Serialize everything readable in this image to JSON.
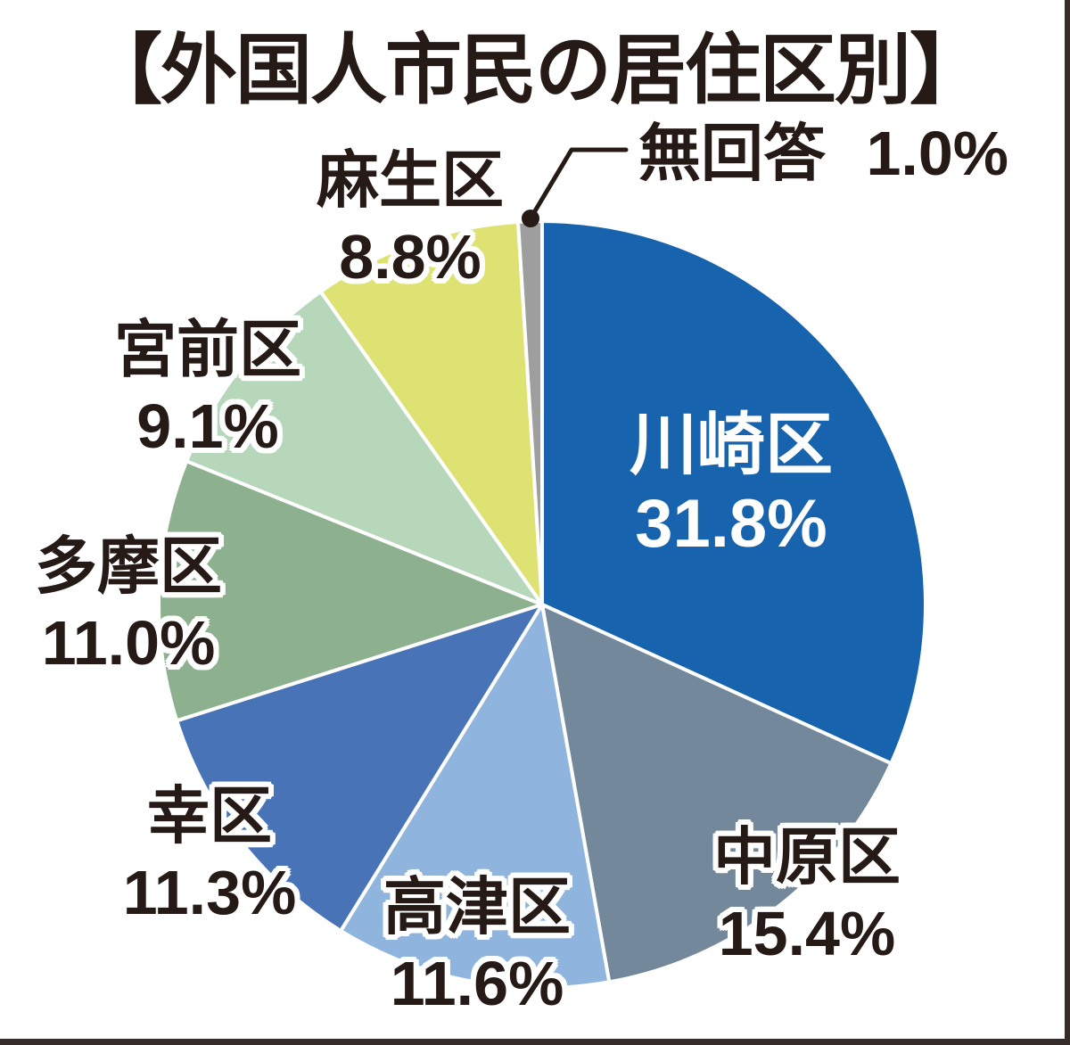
{
  "title": "【外国人市民の居住区別】",
  "frame": {
    "border_color": "#362c29",
    "background": "#ffffff"
  },
  "chart_data": {
    "type": "pie",
    "title": "外国人市民の居住区別",
    "start_angle_deg": 0,
    "direction": "clockwise",
    "stroke_color": "#ffffff",
    "text_color": "#251a16",
    "inside_label_color": "#ffffff",
    "slices": [
      {
        "label": "川崎区",
        "value": 31.8,
        "pct_label": "31.8%",
        "color": "#1763ad",
        "label_placement": "inside"
      },
      {
        "label": "中原区",
        "value": 15.4,
        "pct_label": "15.4%",
        "color": "#74889c",
        "label_placement": "outside"
      },
      {
        "label": "高津区",
        "value": 11.6,
        "pct_label": "11.6%",
        "color": "#8fb4dd",
        "label_placement": "outside"
      },
      {
        "label": "幸区",
        "value": 11.3,
        "pct_label": "11.3%",
        "color": "#4874b7",
        "label_placement": "outside"
      },
      {
        "label": "多摩区",
        "value": 11.0,
        "pct_label": "11.0%",
        "color": "#8db18e",
        "label_placement": "outside"
      },
      {
        "label": "宮前区",
        "value": 9.1,
        "pct_label": "9.1%",
        "color": "#b6d7ba",
        "label_placement": "outside"
      },
      {
        "label": "麻生区",
        "value": 8.8,
        "pct_label": "8.8%",
        "color": "#dde273",
        "label_placement": "outside"
      },
      {
        "label": "無回答",
        "value": 1.0,
        "pct_label": "1.0%",
        "color": "#9e9e9e",
        "label_placement": "callout"
      }
    ]
  }
}
